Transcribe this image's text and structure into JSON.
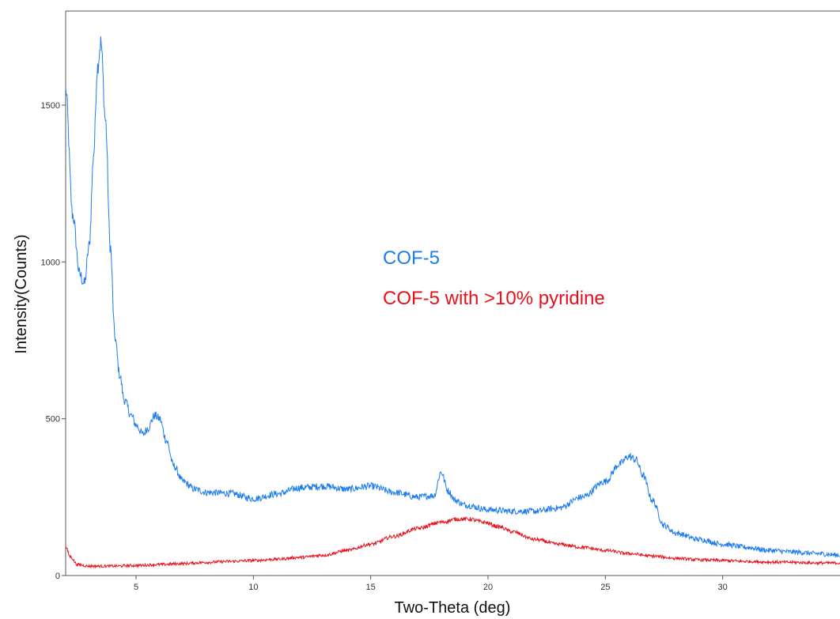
{
  "chart_data": {
    "type": "line",
    "title": "",
    "xlabel": "Two-Theta (deg)",
    "ylabel": "Intensity(Counts)",
    "xlim": [
      2,
      35
    ],
    "ylim": [
      0,
      1800
    ],
    "x_ticks": [
      5,
      10,
      15,
      20,
      25,
      30
    ],
    "y_ticks": [
      0,
      500,
      1000,
      1500
    ],
    "grid": false,
    "legend": {
      "placement": "center",
      "entries": [
        "COF-5",
        "COF-5 with >10% pyridine"
      ]
    },
    "series": [
      {
        "name": "COF-5",
        "color": "#1e7cf0",
        "x": [
          2.0,
          2.3,
          2.6,
          2.8,
          3.0,
          3.2,
          3.35,
          3.5,
          3.7,
          3.9,
          4.1,
          4.3,
          4.5,
          4.8,
          5.0,
          5.3,
          5.5,
          5.8,
          6.0,
          6.3,
          6.6,
          7.0,
          7.5,
          8.0,
          9.0,
          10.0,
          11.0,
          12.0,
          13.0,
          14.0,
          15.0,
          16.0,
          17.0,
          17.7,
          18.0,
          18.3,
          18.6,
          19.0,
          20.0,
          21.0,
          22.0,
          23.0,
          24.0,
          25.0,
          25.6,
          26.0,
          26.3,
          26.6,
          27.0,
          27.5,
          28.0,
          29.0,
          30.0,
          31.0,
          32.0,
          33.0,
          34.0,
          35.0
        ],
        "y": [
          1550,
          1150,
          960,
          930,
          1050,
          1350,
          1620,
          1700,
          1450,
          1050,
          760,
          640,
          560,
          510,
          480,
          450,
          470,
          510,
          500,
          430,
          350,
          300,
          275,
          265,
          262,
          245,
          260,
          280,
          285,
          275,
          285,
          265,
          250,
          255,
          330,
          270,
          240,
          225,
          210,
          205,
          205,
          215,
          250,
          300,
          355,
          380,
          370,
          320,
          240,
          160,
          135,
          115,
          100,
          90,
          80,
          75,
          70,
          65
        ]
      },
      {
        "name": "COF-5 with >10% pyridine",
        "color": "#e8101a",
        "x": [
          2.0,
          2.2,
          2.5,
          3.0,
          4.0,
          5.0,
          6.0,
          7.0,
          8.0,
          9.0,
          10.0,
          11.0,
          12.0,
          13.0,
          14.0,
          15.0,
          16.0,
          17.0,
          18.0,
          18.7,
          19.2,
          19.8,
          20.5,
          21.0,
          22.0,
          23.0,
          24.0,
          25.0,
          26.0,
          27.0,
          28.0,
          29.0,
          30.0,
          31.0,
          32.0,
          33.0,
          34.0,
          35.0
        ],
        "y": [
          90,
          60,
          35,
          30,
          30,
          32,
          35,
          38,
          42,
          45,
          48,
          52,
          58,
          65,
          80,
          100,
          125,
          150,
          170,
          180,
          180,
          170,
          155,
          140,
          115,
          100,
          90,
          80,
          70,
          62,
          55,
          50,
          48,
          45,
          43,
          42,
          40,
          40
        ]
      }
    ]
  }
}
